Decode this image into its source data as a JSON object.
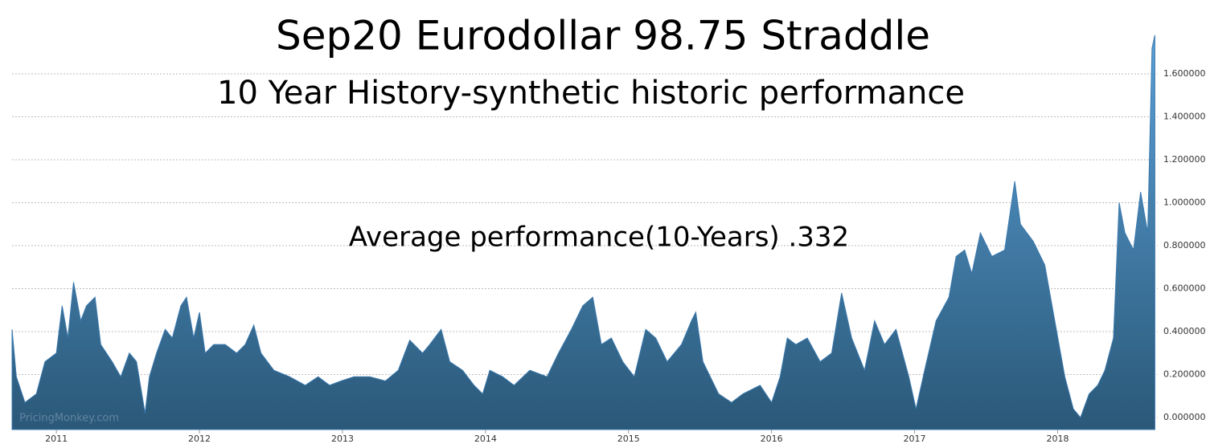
{
  "chart_data": {
    "type": "area",
    "title": "Sep20 Eurodollar 98.75 Straddle",
    "subtitle": "10 Year History-synthetic historic performance",
    "annotation": "Average performance(10-Years) .332",
    "watermark": "PricingMonkey.com",
    "color": "#3a78ad",
    "grid": true,
    "xlim": [
      2010.69,
      2018.7
    ],
    "xticks": [
      2011,
      2012,
      2013,
      2014,
      2015,
      2016,
      2017,
      2018
    ],
    "ylim": [
      -0.056,
      1.8
    ],
    "yticks": [
      {
        "value": 0,
        "label": "0.000000"
      },
      {
        "value": 0.2,
        "label": "0.200000"
      },
      {
        "value": 0.4,
        "label": "0.400000"
      },
      {
        "value": 0.6,
        "label": "0.600000"
      },
      {
        "value": 0.8,
        "label": "0.800000"
      },
      {
        "value": 1.0,
        "label": "1.000000"
      },
      {
        "value": 1.2,
        "label": "1.200000"
      },
      {
        "value": 1.4,
        "label": "1.400000"
      },
      {
        "value": 1.6,
        "label": "1.600000"
      }
    ],
    "x": [
      2010.69,
      2010.72,
      2010.78,
      2010.86,
      2010.92,
      2011.0,
      2011.04,
      2011.08,
      2011.12,
      2011.17,
      2011.21,
      2011.27,
      2011.31,
      2011.39,
      2011.45,
      2011.51,
      2011.56,
      2011.62,
      2011.65,
      2011.7,
      2011.76,
      2011.81,
      2011.87,
      2011.91,
      2011.96,
      2012.0,
      2012.04,
      2012.1,
      2012.18,
      2012.26,
      2012.32,
      2012.38,
      2012.43,
      2012.52,
      2012.63,
      2012.74,
      2012.83,
      2012.91,
      2012.99,
      2013.08,
      2013.19,
      2013.3,
      2013.39,
      2013.47,
      2013.56,
      2013.61,
      2013.69,
      2013.75,
      2013.84,
      2013.92,
      2013.98,
      2014.03,
      2014.12,
      2014.2,
      2014.31,
      2014.43,
      2014.51,
      2014.6,
      2014.68,
      2014.75,
      2014.81,
      2014.88,
      2014.96,
      2015.04,
      2015.12,
      2015.19,
      2015.27,
      2015.37,
      2015.44,
      2015.47,
      2015.52,
      2015.63,
      2015.72,
      2015.8,
      2015.92,
      2016.0,
      2016.06,
      2016.11,
      2016.17,
      2016.25,
      2016.34,
      2016.42,
      2016.49,
      2016.56,
      2016.65,
      2016.72,
      2016.79,
      2016.87,
      2016.96,
      2017.01,
      2017.07,
      2017.15,
      2017.24,
      2017.29,
      2017.35,
      2017.4,
      2017.46,
      2017.54,
      2017.63,
      2017.7,
      2017.74,
      2017.83,
      2017.91,
      2017.98,
      2018.05,
      2018.11,
      2018.16,
      2018.22,
      2018.28,
      2018.33,
      2018.39,
      2018.43,
      2018.47,
      2018.53,
      2018.58,
      2018.63,
      2018.66,
      2018.68
    ],
    "values": [
      0.41,
      0.19,
      0.07,
      0.11,
      0.26,
      0.3,
      0.52,
      0.37,
      0.63,
      0.45,
      0.52,
      0.56,
      0.34,
      0.26,
      0.19,
      0.3,
      0.26,
      0.02,
      0.19,
      0.3,
      0.41,
      0.37,
      0.52,
      0.56,
      0.37,
      0.49,
      0.3,
      0.34,
      0.34,
      0.3,
      0.34,
      0.43,
      0.3,
      0.22,
      0.19,
      0.15,
      0.19,
      0.15,
      0.17,
      0.19,
      0.19,
      0.17,
      0.22,
      0.36,
      0.3,
      0.34,
      0.41,
      0.26,
      0.22,
      0.15,
      0.11,
      0.22,
      0.19,
      0.15,
      0.22,
      0.19,
      0.3,
      0.41,
      0.52,
      0.56,
      0.34,
      0.37,
      0.26,
      0.19,
      0.41,
      0.37,
      0.26,
      0.34,
      0.45,
      0.49,
      0.26,
      0.11,
      0.07,
      0.11,
      0.15,
      0.07,
      0.19,
      0.37,
      0.34,
      0.37,
      0.26,
      0.3,
      0.58,
      0.37,
      0.22,
      0.45,
      0.34,
      0.41,
      0.19,
      0.04,
      0.22,
      0.45,
      0.56,
      0.75,
      0.78,
      0.67,
      0.86,
      0.75,
      0.78,
      1.1,
      0.9,
      0.82,
      0.71,
      0.45,
      0.19,
      0.04,
      0.0,
      0.11,
      0.15,
      0.22,
      0.37,
      1.0,
      0.86,
      0.78,
      1.05,
      0.86,
      1.72,
      1.78
    ]
  }
}
